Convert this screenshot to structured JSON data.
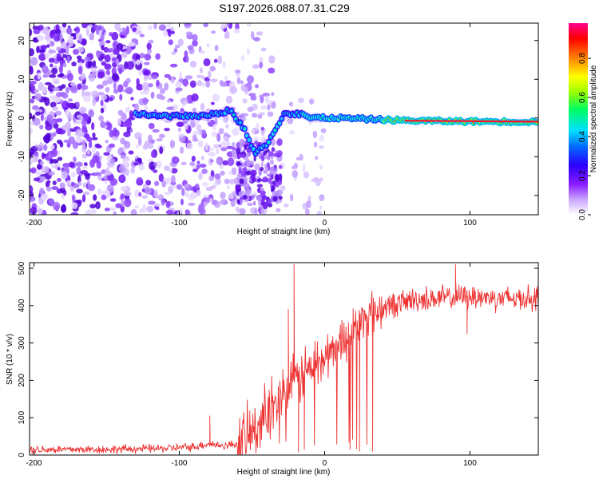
{
  "title": "S197.2026.088.07.31.C29",
  "chart_data": [
    {
      "type": "heatmap",
      "xlabel": "Height of straight line (km)",
      "ylabel": "Frequency (Hz)",
      "xlim": [
        -203,
        147
      ],
      "ylim": [
        -25,
        24.5
      ],
      "xticks": [
        -200,
        -100,
        0,
        100
      ],
      "yticks": [
        -20,
        -10,
        0,
        10,
        20
      ],
      "ridge": {
        "description_points_x": [
          -130,
          -110,
          -100,
          -90,
          -75,
          -65,
          -55,
          -48,
          -40,
          -35,
          -28,
          -20,
          -15,
          -10,
          -5,
          0,
          10,
          30,
          60,
          100,
          147
        ],
        "description_points_f": [
          1,
          0.5,
          0.5,
          0.5,
          1,
          2,
          -3,
          -9,
          -7,
          -4,
          1,
          1,
          1,
          0,
          0,
          0,
          0,
          -0.3,
          -0.7,
          -0.9,
          -1
        ]
      },
      "colorbar": {
        "label": "Normalized spectral amplitude",
        "ticks": [
          "0.0",
          "0.2",
          "0.4",
          "0.6",
          "0.8"
        ],
        "tick_values": [
          0.0,
          0.2,
          0.4,
          0.6,
          0.8
        ],
        "range": [
          0,
          0.98
        ],
        "stops": [
          "#ffffff",
          "#c8a0ff",
          "#8a1aff",
          "#3a00ff",
          "#0060ff",
          "#00e0ff",
          "#00ff60",
          "#a0ff00",
          "#ffff00",
          "#ff8000",
          "#ff0000",
          "#ff0080"
        ]
      }
    },
    {
      "type": "line",
      "xlabel": "Height of straight line (km)",
      "ylabel": "SNR (10 * v/v)",
      "xlim": [
        -203,
        147
      ],
      "ylim": [
        0,
        515
      ],
      "xticks": [
        -200,
        -100,
        0,
        100
      ],
      "yticks": [
        0,
        100,
        200,
        300,
        400,
        500
      ],
      "color": "#ee3333",
      "trend_x": [
        -203,
        -150,
        -110,
        -90,
        -80,
        -70,
        -60,
        -50,
        -40,
        -30,
        -20,
        -10,
        0,
        10,
        20,
        30,
        40,
        60,
        80,
        100,
        120,
        147
      ],
      "trend_y": [
        15,
        15,
        18,
        22,
        30,
        25,
        30,
        60,
        110,
        160,
        200,
        230,
        260,
        300,
        340,
        370,
        395,
        415,
        420,
        425,
        420,
        420
      ],
      "spikes": [
        {
          "x": -79,
          "y": 105
        },
        {
          "x": -21,
          "y": 510
        },
        {
          "x": -25,
          "y": 390
        },
        {
          "x": -14,
          "y": 15
        },
        {
          "x": -18,
          "y": 8
        },
        {
          "x": 24,
          "y": 10
        },
        {
          "x": 33,
          "y": 10
        },
        {
          "x": 90,
          "y": 510
        },
        {
          "x": 98,
          "y": 325
        }
      ]
    }
  ]
}
